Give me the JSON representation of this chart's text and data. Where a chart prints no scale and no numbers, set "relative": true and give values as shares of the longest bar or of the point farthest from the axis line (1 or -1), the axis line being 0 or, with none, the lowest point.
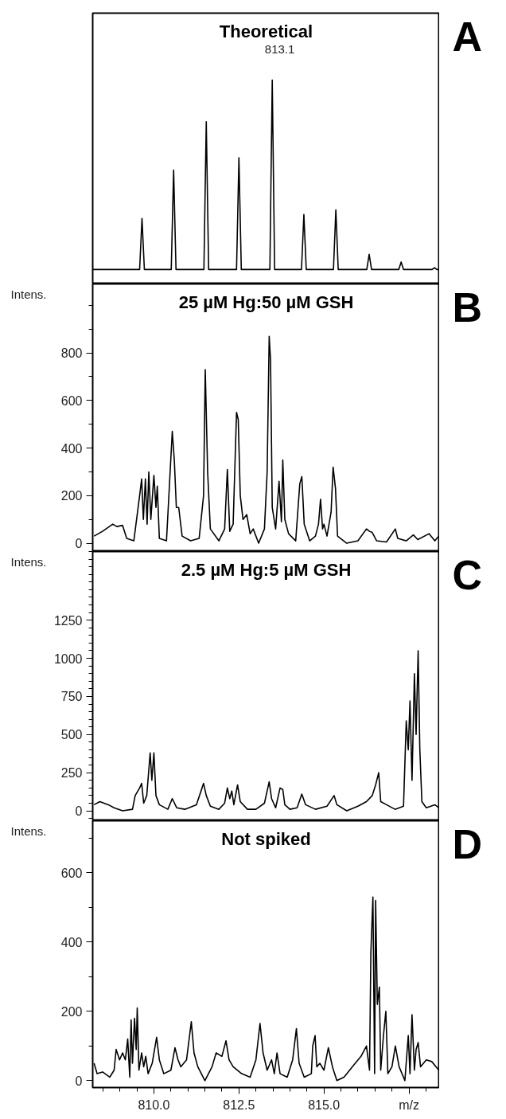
{
  "chart_data": [
    {
      "type": "line",
      "title": "Theoretical",
      "annotations": [
        "813.1",
        "A"
      ],
      "relative": true,
      "tick_labels": false,
      "xlim": [
        808.2,
        818.4
      ],
      "series": [
        {
          "color": "#000000",
          "x": [
            808.2,
            809.58,
            809.65,
            809.72,
            810.51,
            810.58,
            810.65,
            811.47,
            811.54,
            811.61,
            812.43,
            812.5,
            812.57,
            813.41,
            813.48,
            813.55,
            814.34,
            814.41,
            814.48,
            815.28,
            815.35,
            815.42,
            816.26,
            816.33,
            816.4,
            817.2,
            817.27,
            817.34,
            818.18,
            818.25,
            818.32,
            818.4
          ],
          "values": [
            0,
            0,
            0.27,
            0,
            0,
            0.525,
            0,
            0,
            0.78,
            0,
            0,
            0.59,
            0,
            0,
            1,
            0,
            0,
            0.29,
            0,
            0,
            0.315,
            0,
            0,
            0.08,
            0,
            0,
            0.04,
            0,
            0,
            0.01,
            0,
            0
          ]
        }
      ]
    },
    {
      "type": "line",
      "title": "25 µM Hg:50 µM GSH",
      "ylabel": "Intens.",
      "annotations": [
        "B"
      ],
      "tick_labels": "y",
      "xlim": [
        808.2,
        818.4
      ],
      "ylim": [
        -35,
        1090
      ],
      "yticks": [
        0,
        200,
        400,
        600,
        800
      ],
      "series": [
        {
          "color": "#000000",
          "x": [
            808.24,
            808.49,
            808.79,
            808.91,
            809.08,
            809.2,
            809.41,
            809.58,
            809.64,
            809.69,
            809.75,
            809.8,
            809.85,
            809.91,
            810.0,
            810.06,
            810.1,
            810.16,
            810.37,
            810.54,
            810.6,
            810.66,
            810.73,
            810.83,
            811.08,
            811.33,
            811.46,
            811.51,
            811.58,
            811.66,
            811.91,
            812.08,
            812.16,
            812.23,
            812.33,
            812.43,
            812.48,
            812.54,
            812.62,
            812.73,
            812.83,
            812.92,
            813.08,
            813.25,
            813.33,
            813.39,
            813.43,
            813.48,
            813.58,
            813.68,
            813.75,
            813.79,
            813.85,
            813.96,
            814.17,
            814.29,
            814.35,
            814.42,
            814.58,
            814.75,
            814.84,
            814.9,
            814.96,
            815.0,
            815.09,
            815.21,
            815.27,
            815.34,
            815.4,
            815.67,
            816.0,
            816.25,
            816.34,
            816.42,
            816.55,
            816.84,
            817.1,
            817.17,
            817.42,
            817.63,
            817.76,
            818.09,
            818.26,
            818.38
          ],
          "values": [
            30,
            50,
            80,
            70,
            75,
            20,
            10,
            200,
            270,
            100,
            270,
            80,
            300,
            100,
            285,
            150,
            240,
            20,
            10,
            470,
            350,
            150,
            150,
            30,
            10,
            20,
            200,
            730,
            300,
            60,
            10,
            60,
            310,
            50,
            80,
            550,
            520,
            200,
            100,
            120,
            40,
            60,
            0,
            60,
            300,
            870,
            770,
            150,
            60,
            260,
            90,
            350,
            100,
            40,
            10,
            250,
            280,
            80,
            10,
            30,
            80,
            185,
            60,
            80,
            30,
            130,
            320,
            230,
            30,
            0,
            10,
            60,
            50,
            45,
            10,
            5,
            60,
            20,
            10,
            35,
            15,
            40,
            10,
            30
          ]
        }
      ]
    },
    {
      "type": "line",
      "title": "2.5 µM Hg:5 µM GSH",
      "ylabel": "Intens.",
      "annotations": [
        "C"
      ],
      "tick_labels": "y",
      "xlim": [
        808.2,
        818.4
      ],
      "ylim": [
        -65,
        1700
      ],
      "yticks": [
        0,
        250,
        500,
        750,
        1000,
        1250
      ],
      "series": [
        {
          "color": "#000000",
          "x": [
            808.24,
            808.41,
            808.66,
            808.83,
            809.08,
            809.37,
            809.45,
            809.58,
            809.64,
            809.7,
            809.79,
            809.89,
            809.94,
            810.0,
            810.06,
            810.16,
            810.41,
            810.54,
            810.67,
            810.91,
            811.25,
            811.46,
            811.54,
            811.66,
            811.91,
            812.08,
            812.16,
            812.23,
            812.29,
            812.35,
            812.46,
            812.54,
            812.75,
            813.0,
            813.25,
            813.39,
            813.46,
            813.58,
            813.71,
            813.79,
            813.85,
            814.0,
            814.21,
            814.35,
            814.46,
            814.75,
            815.09,
            815.3,
            815.38,
            815.67,
            816.0,
            816.25,
            816.42,
            816.52,
            816.61,
            816.67,
            816.84,
            817.09,
            817.34,
            817.42,
            817.48,
            817.53,
            817.59,
            817.66,
            817.71,
            817.77,
            817.82,
            817.88,
            818.01,
            818.26,
            818.38
          ],
          "values": [
            40,
            60,
            40,
            20,
            0,
            10,
            100,
            150,
            180,
            50,
            100,
            380,
            200,
            380,
            100,
            40,
            10,
            80,
            20,
            10,
            40,
            180,
            100,
            30,
            10,
            50,
            150,
            80,
            130,
            40,
            170,
            60,
            10,
            10,
            50,
            190,
            80,
            20,
            150,
            140,
            40,
            10,
            20,
            110,
            40,
            10,
            30,
            100,
            40,
            0,
            30,
            60,
            100,
            170,
            250,
            60,
            40,
            10,
            30,
            590,
            400,
            720,
            200,
            900,
            500,
            1050,
            400,
            60,
            20,
            40,
            20
          ]
        }
      ]
    },
    {
      "type": "line",
      "title": "Not spiked",
      "ylabel": "Intens.",
      "annotations": [
        "D"
      ],
      "xlim": [
        808.2,
        818.4
      ],
      "ylim": [
        -20,
        750
      ],
      "yticks": [
        0,
        200,
        400,
        600
      ],
      "xticks": [
        {
          "value": 810,
          "label": "810.0"
        },
        812.5,
        {
          "value": 815,
          "label": "815.0"
        },
        {
          "value": 817.5,
          "label": "m/z"
        }
      ],
      "series": [
        {
          "color": "#000000",
          "x": [
            808.24,
            808.33,
            808.49,
            808.7,
            808.83,
            808.89,
            808.99,
            809.08,
            809.16,
            809.23,
            809.29,
            809.33,
            809.37,
            809.43,
            809.48,
            809.51,
            809.56,
            809.64,
            809.7,
            809.76,
            809.83,
            809.95,
            810.08,
            810.16,
            810.29,
            810.5,
            810.62,
            810.71,
            810.79,
            810.96,
            811.1,
            811.18,
            811.29,
            811.5,
            811.71,
            811.83,
            812.0,
            812.12,
            812.21,
            812.33,
            812.58,
            812.83,
            813.0,
            813.12,
            813.21,
            813.33,
            813.46,
            813.54,
            813.62,
            813.71,
            813.92,
            814.08,
            814.19,
            814.27,
            814.42,
            814.63,
            814.67,
            814.74,
            814.79,
            814.88,
            815.0,
            815.13,
            815.25,
            815.38,
            815.59,
            815.92,
            816.09,
            816.25,
            816.34,
            816.38,
            816.44,
            816.49,
            816.52,
            816.57,
            816.63,
            816.67,
            816.75,
            816.82,
            816.88,
            817.0,
            817.1,
            817.21,
            817.38,
            817.48,
            817.53,
            817.59,
            817.66,
            817.71,
            817.77,
            817.84,
            818.01,
            818.17,
            818.38
          ],
          "values": [
            50,
            20,
            25,
            10,
            30,
            90,
            60,
            80,
            60,
            120,
            10,
            175,
            50,
            180,
            90,
            210,
            30,
            80,
            40,
            70,
            20,
            50,
            125,
            60,
            20,
            30,
            95,
            60,
            40,
            60,
            170,
            80,
            40,
            0,
            40,
            80,
            70,
            115,
            60,
            40,
            20,
            10,
            60,
            165,
            80,
            30,
            60,
            20,
            80,
            20,
            10,
            60,
            150,
            50,
            10,
            20,
            100,
            130,
            40,
            50,
            30,
            95,
            40,
            0,
            10,
            50,
            70,
            100,
            30,
            370,
            530,
            20,
            520,
            220,
            270,
            30,
            130,
            200,
            20,
            40,
            100,
            40,
            0,
            130,
            20,
            190,
            30,
            90,
            110,
            40,
            60,
            55,
            30
          ]
        }
      ]
    }
  ]
}
